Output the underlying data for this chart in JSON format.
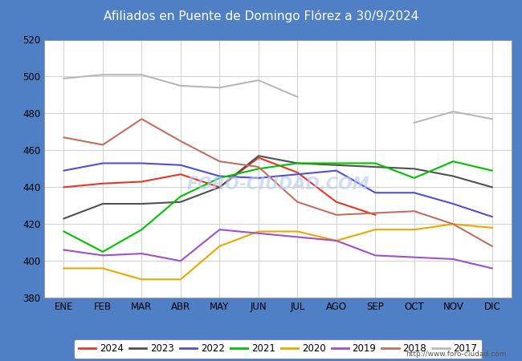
{
  "title": "Afiliados en Puente de Domingo Flórez a 30/9/2024",
  "title_bg_color": "#4f7fc4",
  "title_text_color": "#ffffff",
  "ylim": [
    380,
    520
  ],
  "yticks": [
    380,
    400,
    420,
    440,
    460,
    480,
    500,
    520
  ],
  "months": [
    "ENE",
    "FEB",
    "MAR",
    "ABR",
    "MAY",
    "JUN",
    "JUL",
    "AGO",
    "SEP",
    "OCT",
    "NOV",
    "DIC"
  ],
  "watermark": "FORO-CIUDAD.COM",
  "url": "http://www.foro-ciudad.com",
  "series": {
    "2024": {
      "color": "#e8352a",
      "data": [
        440,
        442,
        443,
        447,
        440,
        456,
        448,
        432,
        425,
        null,
        null,
        null
      ]
    },
    "2023": {
      "color": "#505050",
      "data": [
        423,
        431,
        431,
        432,
        440,
        457,
        453,
        452,
        451,
        450,
        446,
        440
      ]
    },
    "2022": {
      "color": "#5050d0",
      "data": [
        449,
        453,
        453,
        452,
        446,
        445,
        447,
        449,
        437,
        437,
        431,
        424
      ]
    },
    "2021": {
      "color": "#00c000",
      "data": [
        416,
        405,
        417,
        435,
        445,
        450,
        453,
        453,
        453,
        445,
        454,
        449
      ]
    },
    "2020": {
      "color": "#e8a800",
      "data": [
        396,
        396,
        390,
        390,
        408,
        416,
        416,
        411,
        417,
        417,
        420,
        418
      ]
    },
    "2019": {
      "color": "#a050c8",
      "data": [
        406,
        403,
        404,
        400,
        417,
        415,
        413,
        411,
        403,
        402,
        401,
        396
      ]
    },
    "2018": {
      "color": "#c07060",
      "data": [
        467,
        463,
        477,
        465,
        454,
        451,
        432,
        425,
        426,
        427,
        420,
        408
      ]
    },
    "2017": {
      "color": "#b8b8b8",
      "data": [
        499,
        501,
        501,
        495,
        494,
        498,
        489,
        null,
        null,
        475,
        481,
        477
      ]
    }
  },
  "legend_order": [
    "2024",
    "2023",
    "2022",
    "2021",
    "2020",
    "2019",
    "2018",
    "2017"
  ],
  "grid_color": "#d0d0d0",
  "outer_bg_color": "#4f7fc4",
  "inner_bg_color": "#f0f0f0",
  "plot_bg_color": "#ffffff"
}
